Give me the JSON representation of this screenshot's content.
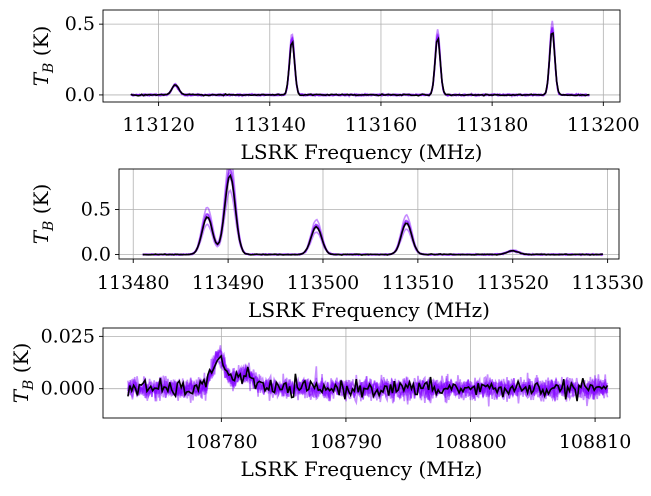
{
  "figure": {
    "colors": {
      "model": "#8000ff",
      "data": "#000000",
      "grid": "#b0b0b0"
    }
  },
  "chart_data": [
    {
      "type": "line",
      "xlabel": "LSRK Frequency (MHz)",
      "ylabel_main": "T",
      "ylabel_sub": "B",
      "ylabel_unit": "(K)",
      "xlim": [
        113110,
        113203
      ],
      "ylim": [
        -0.05,
        0.6
      ],
      "xticks": [
        113120,
        113140,
        113160,
        113180,
        113200
      ],
      "yticks": [
        0.0,
        0.5
      ],
      "ytick_labels": [
        "0.0",
        "0.5"
      ],
      "x_range": [
        113115,
        113197.5
      ],
      "lines": [
        {
          "center": 113123,
          "amp": 0.07,
          "width": 0.6
        },
        {
          "center": 113144,
          "amp": 0.39,
          "width": 0.45
        },
        {
          "center": 113170.2,
          "amp": 0.41,
          "width": 0.45
        },
        {
          "center": 113190.8,
          "amp": 0.46,
          "width": 0.45
        }
      ],
      "noise": 0.003,
      "grid": true
    },
    {
      "type": "line",
      "xlabel": "LSRK Frequency (MHz)",
      "ylabel_main": "T",
      "ylabel_sub": "B",
      "ylabel_unit": "(K)",
      "xlim": [
        113478.5,
        113531.2
      ],
      "ylim": [
        -0.05,
        0.95
      ],
      "xticks": [
        113480,
        113490,
        113500,
        113510,
        113520,
        113530
      ],
      "yticks": [
        0.0,
        0.5
      ],
      "ytick_labels": [
        "0.0",
        "0.5"
      ],
      "x_range": [
        113481,
        113529.5
      ],
      "lines": [
        {
          "center": 113487.8,
          "amp": 0.42,
          "width": 0.55
        },
        {
          "center": 113490.2,
          "amp": 0.88,
          "width": 0.55
        },
        {
          "center": 113499.3,
          "amp": 0.31,
          "width": 0.55
        },
        {
          "center": 113508.8,
          "amp": 0.35,
          "width": 0.55
        },
        {
          "center": 113520,
          "amp": 0.04,
          "width": 0.6
        }
      ],
      "noise": 0.003,
      "grid": true
    },
    {
      "type": "line",
      "xlabel": "LSRK Frequency (MHz)",
      "ylabel_main": "T",
      "ylabel_sub": "B",
      "ylabel_unit": "(K)",
      "xlim": [
        108770.5,
        108812.0
      ],
      "ylim": [
        -0.014,
        0.029
      ],
      "xticks": [
        108780,
        108790,
        108800,
        108810
      ],
      "yticks": [
        0.0,
        0.025
      ],
      "ytick_labels": [
        "0.000",
        "0.025"
      ],
      "x_range": [
        108772.5,
        108811.0
      ],
      "lines": [
        {
          "center": 108779.8,
          "amp": 0.016,
          "width": 0.5
        },
        {
          "center": 108781.8,
          "amp": 0.007,
          "width": 0.7
        }
      ],
      "noise": 0.0025,
      "grid": true
    }
  ]
}
